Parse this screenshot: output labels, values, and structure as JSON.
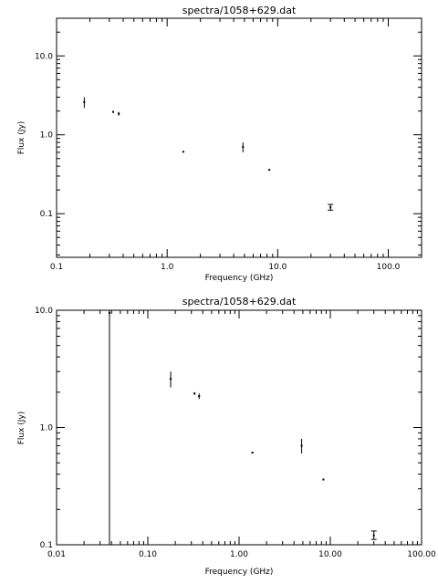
{
  "chart_data": [
    {
      "type": "scatter",
      "title": "spectra/1058+629.dat",
      "xlabel": "Frequency (GHz)",
      "ylabel": "Flux (Jy)",
      "xscale": "log",
      "yscale": "log",
      "xlim": [
        0.1,
        200
      ],
      "ylim": [
        0.028,
        30
      ],
      "xticks": [
        {
          "v": 0.1,
          "label": "0.1"
        },
        {
          "v": 1,
          "label": "1.0"
        },
        {
          "v": 10,
          "label": "10.0"
        },
        {
          "v": 100,
          "label": "100.0"
        }
      ],
      "yticks": [
        {
          "v": 0.1,
          "label": "0.1"
        },
        {
          "v": 1,
          "label": "1.0"
        },
        {
          "v": 10,
          "label": "10.0"
        }
      ],
      "points": [
        {
          "x": 0.178,
          "y": 2.6,
          "ylo": 2.2,
          "yhi": 3.0
        },
        {
          "x": 0.325,
          "y": 1.95,
          "ylo": 1.9,
          "yhi": 2.0
        },
        {
          "x": 0.365,
          "y": 1.85,
          "ylo": 1.75,
          "yhi": 1.95
        },
        {
          "x": 1.4,
          "y": 0.61,
          "ylo": 0.6,
          "yhi": 0.62
        },
        {
          "x": 4.85,
          "y": 0.7,
          "ylo": 0.6,
          "yhi": 0.8
        },
        {
          "x": 8.4,
          "y": 0.36,
          "ylo": 0.355,
          "yhi": 0.365
        },
        {
          "x": 30.0,
          "y": 0.12,
          "ylo": 0.111,
          "yhi": 0.131
        }
      ]
    },
    {
      "type": "scatter",
      "title": "spectra/1058+629.dat",
      "xlabel": "Frequency (GHz)",
      "ylabel": "Flux (Jy)",
      "xscale": "log",
      "yscale": "log",
      "xlim": [
        0.01,
        100
      ],
      "ylim": [
        0.1,
        10
      ],
      "xticks": [
        {
          "v": 0.01,
          "label": "0.01"
        },
        {
          "v": 0.1,
          "label": "0.10"
        },
        {
          "v": 1,
          "label": "1.00"
        },
        {
          "v": 10,
          "label": "10.00"
        },
        {
          "v": 100,
          "label": "100.00"
        }
      ],
      "yticks": [
        {
          "v": 0.1,
          "label": "0.1"
        },
        {
          "v": 1,
          "label": "1.0"
        },
        {
          "v": 10,
          "label": "10.0"
        }
      ],
      "points": [
        {
          "x": 0.038,
          "y": 9.5,
          "ylo": 0.1,
          "yhi": 10
        },
        {
          "x": 0.178,
          "y": 2.6,
          "ylo": 2.2,
          "yhi": 3.0
        },
        {
          "x": 0.325,
          "y": 1.95,
          "ylo": 1.9,
          "yhi": 2.0
        },
        {
          "x": 0.365,
          "y": 1.85,
          "ylo": 1.75,
          "yhi": 1.95
        },
        {
          "x": 1.4,
          "y": 0.61,
          "ylo": 0.6,
          "yhi": 0.62
        },
        {
          "x": 4.85,
          "y": 0.7,
          "ylo": 0.6,
          "yhi": 0.8
        },
        {
          "x": 8.4,
          "y": 0.36,
          "ylo": 0.355,
          "yhi": 0.365
        },
        {
          "x": 30.0,
          "y": 0.12,
          "ylo": 0.111,
          "yhi": 0.131
        }
      ]
    }
  ]
}
